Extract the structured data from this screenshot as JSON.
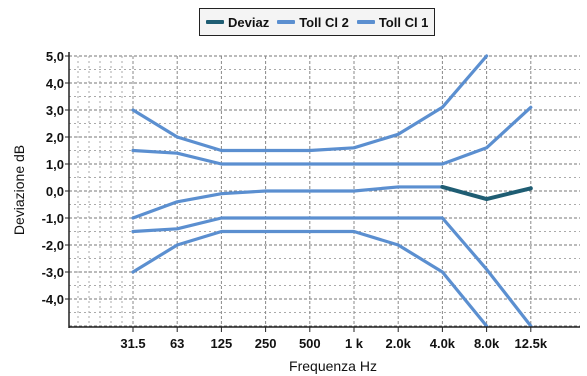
{
  "chart_data": {
    "type": "line",
    "xlabel": "Frequenza Hz",
    "ylabel": "Deviazione dB",
    "categories": [
      "31.5",
      "63",
      "125",
      "250",
      "500",
      "1 k",
      "2.0k",
      "4.0k",
      "8.0k",
      "12.5k"
    ],
    "y_ticks": [
      "5,0",
      "4,0",
      "3,0",
      "2,0",
      "1,0",
      "0,0",
      "-1,0",
      "-2,0",
      "-3,0",
      "-4,0"
    ],
    "ylim": [
      -5.0,
      5.0
    ],
    "grid": true,
    "legend_position": "top-center",
    "series": [
      {
        "name": "Deviaz",
        "color": "#1f5d73",
        "values": [
          null,
          null,
          null,
          null,
          null,
          null,
          null,
          0.15,
          -0.3,
          0.1
        ]
      },
      {
        "name": "Toll Cl 2",
        "color": "#5b8fd0",
        "values": [
          3.0,
          2.0,
          1.5,
          1.5,
          1.5,
          1.6,
          2.1,
          3.1,
          5.0,
          null
        ]
      },
      {
        "name": "Toll Cl 2",
        "color": "#5b8fd0",
        "values": [
          -3.0,
          -2.0,
          -1.5,
          -1.5,
          -1.5,
          -1.5,
          -2.0,
          -3.0,
          -5.0,
          null
        ]
      },
      {
        "name": "Toll Cl 1",
        "color": "#5b8fd0",
        "values": [
          1.5,
          1.4,
          1.0,
          1.0,
          1.0,
          1.0,
          1.0,
          1.0,
          1.6,
          3.1
        ]
      },
      {
        "name": "Toll Cl 1",
        "color": "#5b8fd0",
        "values": [
          -1.5,
          -1.4,
          -1.0,
          -1.0,
          -1.0,
          -1.0,
          -1.0,
          -1.0,
          -2.9,
          -5.0
        ]
      },
      {
        "name": "Toll Cl 1",
        "color": "#5b8fd0",
        "values": [
          -1.0,
          -0.4,
          -0.1,
          0.0,
          0.0,
          0.0,
          0.15,
          0.15,
          null,
          null
        ]
      }
    ],
    "legend": [
      {
        "label": "Deviaz",
        "color": "#1f5d73"
      },
      {
        "label": "Toll Cl 2",
        "color": "#5b8fd0"
      },
      {
        "label": "Toll Cl 1",
        "color": "#5b8fd0"
      }
    ]
  }
}
